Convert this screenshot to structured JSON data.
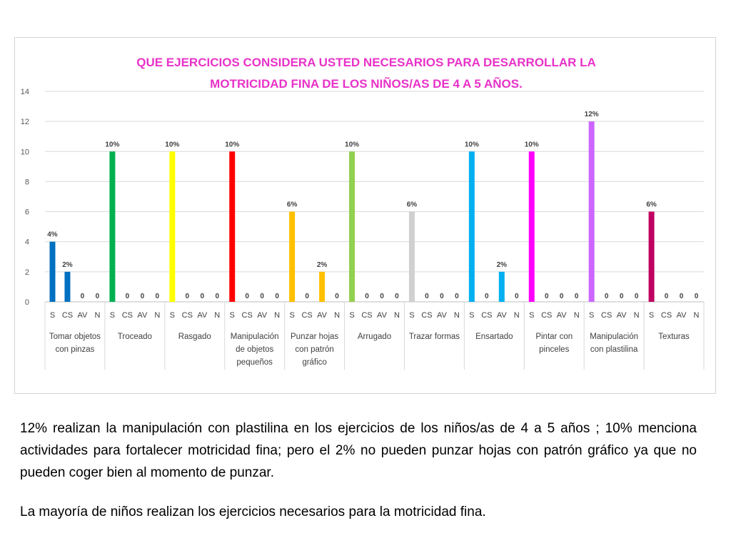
{
  "chart_data": {
    "type": "bar",
    "title_lines": [
      "QUE EJERCICIOS CONSIDERA USTED NECESARIOS PARA DESARROLLAR LA",
      "MOTRICIDAD FINA DE LOS NIÑOS/AS DE 4 A 5 AÑOS."
    ],
    "title_color": "#e832c8",
    "ylim": [
      0,
      14
    ],
    "yticks": [
      0,
      2,
      4,
      6,
      8,
      10,
      12,
      14
    ],
    "grid": true,
    "sub_categories": [
      "S",
      "CS",
      "AV",
      "N"
    ],
    "groups": [
      {
        "label": [
          "Tomar objetos",
          "con pinzas"
        ],
        "color": "#0070c0",
        "values": [
          4,
          2,
          0,
          0
        ],
        "labels": [
          "4%",
          "2%",
          "0",
          "0"
        ]
      },
      {
        "label": [
          "Troceado"
        ],
        "color": "#00b050",
        "values": [
          10,
          0,
          0,
          0
        ],
        "labels": [
          "10%",
          "0",
          "0",
          "0"
        ]
      },
      {
        "label": [
          "Rasgado"
        ],
        "color": "#ffff00",
        "values": [
          10,
          0,
          0,
          0
        ],
        "labels": [
          "10%",
          "0",
          "0",
          "0"
        ]
      },
      {
        "label": [
          "Manipulación",
          "de objetos",
          "pequeños"
        ],
        "color": "#ff0000",
        "values": [
          10,
          0,
          0,
          0
        ],
        "labels": [
          "10%",
          "0",
          "0",
          "0"
        ]
      },
      {
        "label": [
          "Punzar hojas",
          "con patrón",
          "gráfico"
        ],
        "color": "#ffc000",
        "values": [
          6,
          0,
          2,
          0
        ],
        "labels": [
          "6%",
          "0",
          "2%",
          "0"
        ]
      },
      {
        "label": [
          "Arrugado"
        ],
        "color": "#92d050",
        "values": [
          10,
          0,
          0,
          0
        ],
        "labels": [
          "10%",
          "0",
          "0",
          "0"
        ]
      },
      {
        "label": [
          "Trazar formas"
        ],
        "color": "#d0d0d0",
        "values": [
          6,
          0,
          0,
          0
        ],
        "labels": [
          "6%",
          "0",
          "0",
          "0"
        ]
      },
      {
        "label": [
          "Ensartado"
        ],
        "color": "#00b0f0",
        "values": [
          10,
          0,
          2,
          0
        ],
        "labels": [
          "10%",
          "0",
          "2%",
          "0"
        ]
      },
      {
        "label": [
          "Pintar con",
          "pinceles"
        ],
        "color": "#ff00ff",
        "values": [
          10,
          0,
          0,
          0
        ],
        "labels": [
          "10%",
          "0",
          "0",
          "0"
        ]
      },
      {
        "label": [
          "Manipulación",
          "con plastilina"
        ],
        "color": "#cc66ff",
        "values": [
          12,
          0,
          0,
          0
        ],
        "labels": [
          "12%",
          "0",
          "0",
          "0"
        ]
      },
      {
        "label": [
          "Texturas"
        ],
        "color": "#c00060",
        "values": [
          6,
          0,
          0,
          0
        ],
        "labels": [
          "6%",
          "0",
          "0",
          "0"
        ]
      }
    ]
  },
  "notes": {
    "paragraph_1": "12% realizan la manipulación con plastilina en los ejercicios de los niños/as de 4 a 5 años ; 10% menciona actividades para fortalecer motricidad fina; pero el 2% no pueden punzar hojas con patrón gráfico ya que no pueden coger bien al momento de punzar.",
    "paragraph_2": "La mayoría de niños realizan los ejercicios necesarios para la motricidad fina."
  }
}
